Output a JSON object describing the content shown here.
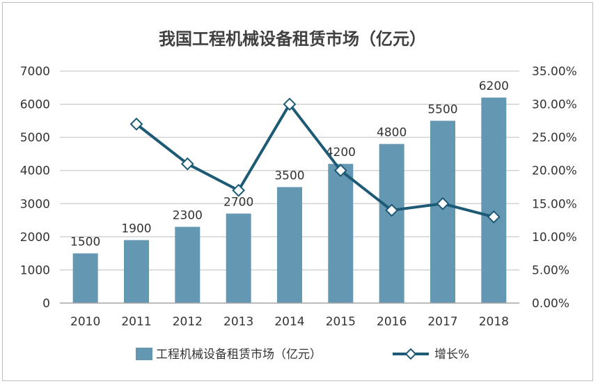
{
  "colors": {
    "bar": "#6497b1",
    "line": "#1d5a75",
    "marker_fill": "#ffffff",
    "axis": "#a6a6a6",
    "grid": "#bfbfbf",
    "text": "#333333"
  },
  "chart_data": {
    "type": "bar",
    "title": "我国工程机械设备租赁市场（亿元）",
    "categories": [
      "2010",
      "2011",
      "2012",
      "2013",
      "2014",
      "2015",
      "2016",
      "2017",
      "2018"
    ],
    "series": [
      {
        "name": "工程机械设备租赁市场（亿元）",
        "type": "bar",
        "axis": "left",
        "values": [
          1500,
          1900,
          2300,
          2700,
          3500,
          4200,
          4800,
          5500,
          6200
        ],
        "data_labels": [
          "1500",
          "1900",
          "2300",
          "2700",
          "3500",
          "4200",
          "4800",
          "5500",
          "6200"
        ]
      },
      {
        "name": "增长%",
        "type": "line",
        "axis": "right",
        "values": [
          null,
          0.27,
          0.21,
          0.17,
          0.3,
          0.2,
          0.14,
          0.15,
          0.13
        ]
      }
    ],
    "ylim": [
      0,
      7000
    ],
    "y_ticks": [
      "0",
      "1000",
      "2000",
      "3000",
      "4000",
      "5000",
      "6000",
      "7000"
    ],
    "y2lim": [
      0,
      0.35
    ],
    "y2_ticks": [
      "0.00%",
      "5.00%",
      "10.00%",
      "15.00%",
      "20.00%",
      "25.00%",
      "30.00%",
      "35.00%"
    ],
    "grid": true,
    "legend_position": "bottom",
    "line_marker": "diamond"
  }
}
